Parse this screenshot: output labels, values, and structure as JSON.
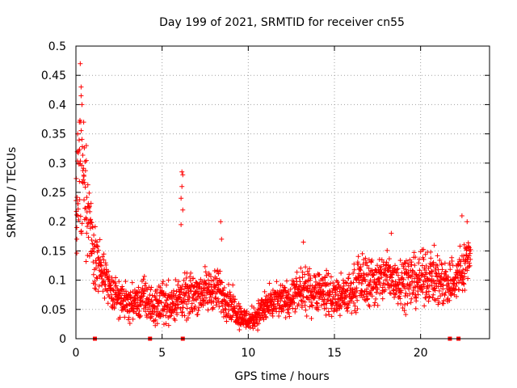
{
  "chart_data": {
    "type": "scatter",
    "title": "Day 199 of 2021, SRMTID for receiver cn55",
    "xlabel": "GPS time / hours",
    "ylabel": "SRMTID / TECUs",
    "xlim": [
      0,
      24
    ],
    "ylim": [
      0,
      0.5
    ],
    "x_ticks": [
      0,
      5,
      10,
      15,
      20
    ],
    "y_ticks": [
      0,
      0.05,
      0.1,
      0.15,
      0.2,
      0.25,
      0.3,
      0.35,
      0.4,
      0.45,
      0.5
    ],
    "x_tick_labels": [
      "0",
      "5",
      "10",
      "15",
      "20"
    ],
    "y_tick_labels": [
      "0",
      "0.05",
      "0.1",
      "0.15",
      "0.2",
      "0.25",
      "0.3",
      "0.35",
      "0.4",
      "0.45",
      "0.5"
    ],
    "grid": true,
    "marker": "+",
    "marker_color": "#ff0000",
    "series": [
      {
        "name": "SRMTID",
        "envelope_hours": [
          0,
          0.25,
          0.5,
          0.75,
          1,
          1.5,
          2,
          2.5,
          3,
          3.5,
          4,
          4.5,
          5,
          5.5,
          6,
          6.5,
          7,
          7.5,
          8,
          8.5,
          9,
          9.5,
          10,
          10.5,
          11,
          11.5,
          12,
          12.5,
          13,
          13.5,
          14,
          14.5,
          15,
          15.5,
          16,
          16.5,
          17,
          17.5,
          18,
          18.5,
          19,
          19.5,
          20,
          20.5,
          21,
          21.5,
          22,
          22.5,
          22.9
        ],
        "typical": [
          0.24,
          0.27,
          0.25,
          0.21,
          0.16,
          0.11,
          0.08,
          0.07,
          0.06,
          0.06,
          0.07,
          0.05,
          0.065,
          0.06,
          0.07,
          0.07,
          0.08,
          0.08,
          0.085,
          0.075,
          0.06,
          0.04,
          0.03,
          0.04,
          0.055,
          0.06,
          0.065,
          0.07,
          0.08,
          0.08,
          0.085,
          0.08,
          0.07,
          0.07,
          0.08,
          0.1,
          0.1,
          0.095,
          0.11,
          0.1,
          0.1,
          0.1,
          0.1,
          0.11,
          0.1,
          0.095,
          0.1,
          0.12,
          0.15
        ],
        "spread": [
          0.06,
          0.08,
          0.06,
          0.05,
          0.04,
          0.03,
          0.025,
          0.02,
          0.02,
          0.02,
          0.025,
          0.02,
          0.025,
          0.025,
          0.025,
          0.025,
          0.025,
          0.025,
          0.025,
          0.025,
          0.02,
          0.015,
          0.012,
          0.015,
          0.02,
          0.02,
          0.02,
          0.02,
          0.025,
          0.025,
          0.025,
          0.025,
          0.025,
          0.025,
          0.025,
          0.03,
          0.03,
          0.03,
          0.03,
          0.03,
          0.03,
          0.03,
          0.03,
          0.03,
          0.03,
          0.03,
          0.03,
          0.03,
          0.025
        ],
        "outliers": [
          [
            0.25,
            0.47
          ],
          [
            0.3,
            0.43
          ],
          [
            0.3,
            0.415
          ],
          [
            0.35,
            0.4
          ],
          [
            0.2,
            0.37
          ],
          [
            0.1,
            0.35
          ],
          [
            0.45,
            0.37
          ],
          [
            0.6,
            0.33
          ],
          [
            6.15,
            0.285
          ],
          [
            6.2,
            0.28
          ],
          [
            6.15,
            0.26
          ],
          [
            6.1,
            0.24
          ],
          [
            6.2,
            0.22
          ],
          [
            6.1,
            0.195
          ],
          [
            8.4,
            0.2
          ],
          [
            8.45,
            0.17
          ],
          [
            13.2,
            0.165
          ],
          [
            18.3,
            0.18
          ],
          [
            22.4,
            0.21
          ],
          [
            22.7,
            0.2
          ],
          [
            0.05,
            0.17
          ],
          [
            0.05,
            0.19
          ]
        ],
        "gap_markers": [
          1.1,
          4.3,
          6.2,
          21.7,
          22.2
        ]
      }
    ]
  }
}
